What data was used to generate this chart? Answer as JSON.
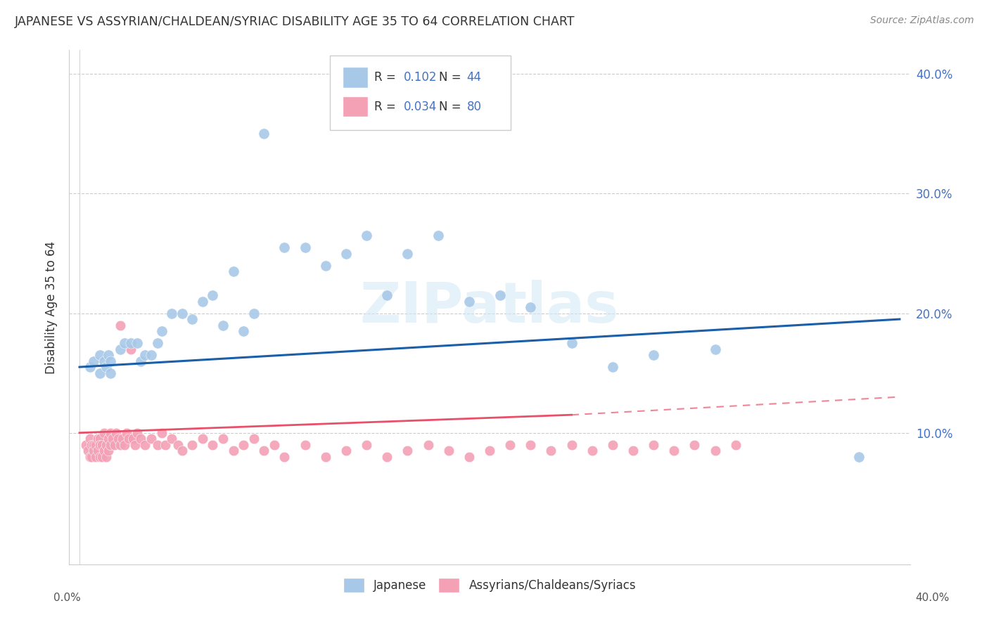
{
  "title": "JAPANESE VS ASSYRIAN/CHALDEAN/SYRIAC DISABILITY AGE 35 TO 64 CORRELATION CHART",
  "source": "Source: ZipAtlas.com",
  "ylabel": "Disability Age 35 to 64",
  "blue_color": "#a8c8e8",
  "pink_color": "#f4a0b5",
  "blue_line_color": "#1a5fa8",
  "pink_line_color": "#e8506a",
  "watermark": "ZIPatlas",
  "japanese_points_x": [
    0.005,
    0.007,
    0.01,
    0.01,
    0.012,
    0.013,
    0.014,
    0.015,
    0.015,
    0.02,
    0.022,
    0.025,
    0.028,
    0.03,
    0.032,
    0.035,
    0.038,
    0.04,
    0.045,
    0.05,
    0.055,
    0.06,
    0.065,
    0.07,
    0.075,
    0.08,
    0.085,
    0.09,
    0.1,
    0.11,
    0.12,
    0.13,
    0.14,
    0.15,
    0.16,
    0.175,
    0.19,
    0.205,
    0.22,
    0.24,
    0.26,
    0.28,
    0.31,
    0.38
  ],
  "japanese_points_y": [
    0.155,
    0.16,
    0.165,
    0.15,
    0.16,
    0.155,
    0.165,
    0.15,
    0.16,
    0.17,
    0.175,
    0.175,
    0.175,
    0.16,
    0.165,
    0.165,
    0.175,
    0.185,
    0.2,
    0.2,
    0.195,
    0.21,
    0.215,
    0.19,
    0.235,
    0.185,
    0.2,
    0.35,
    0.255,
    0.255,
    0.24,
    0.25,
    0.265,
    0.215,
    0.25,
    0.265,
    0.21,
    0.215,
    0.205,
    0.175,
    0.155,
    0.165,
    0.17,
    0.08
  ],
  "assyrian_points_x": [
    0.003,
    0.004,
    0.005,
    0.005,
    0.006,
    0.006,
    0.007,
    0.007,
    0.008,
    0.008,
    0.009,
    0.009,
    0.01,
    0.01,
    0.01,
    0.011,
    0.011,
    0.012,
    0.012,
    0.013,
    0.013,
    0.014,
    0.014,
    0.015,
    0.015,
    0.016,
    0.017,
    0.018,
    0.019,
    0.02,
    0.02,
    0.021,
    0.022,
    0.023,
    0.024,
    0.025,
    0.026,
    0.027,
    0.028,
    0.03,
    0.032,
    0.035,
    0.038,
    0.04,
    0.042,
    0.045,
    0.048,
    0.05,
    0.055,
    0.06,
    0.065,
    0.07,
    0.075,
    0.08,
    0.085,
    0.09,
    0.095,
    0.1,
    0.11,
    0.12,
    0.13,
    0.14,
    0.15,
    0.16,
    0.17,
    0.18,
    0.19,
    0.2,
    0.21,
    0.22,
    0.23,
    0.24,
    0.25,
    0.26,
    0.27,
    0.28,
    0.29,
    0.3,
    0.31,
    0.32
  ],
  "assyrian_points_y": [
    0.09,
    0.085,
    0.095,
    0.08,
    0.09,
    0.08,
    0.09,
    0.085,
    0.09,
    0.08,
    0.095,
    0.085,
    0.095,
    0.09,
    0.08,
    0.09,
    0.08,
    0.1,
    0.085,
    0.09,
    0.08,
    0.095,
    0.085,
    0.1,
    0.09,
    0.095,
    0.09,
    0.1,
    0.095,
    0.19,
    0.09,
    0.095,
    0.09,
    0.1,
    0.095,
    0.17,
    0.095,
    0.09,
    0.1,
    0.095,
    0.09,
    0.095,
    0.09,
    0.1,
    0.09,
    0.095,
    0.09,
    0.085,
    0.09,
    0.095,
    0.09,
    0.095,
    0.085,
    0.09,
    0.095,
    0.085,
    0.09,
    0.08,
    0.09,
    0.08,
    0.085,
    0.09,
    0.08,
    0.085,
    0.09,
    0.085,
    0.08,
    0.085,
    0.09,
    0.09,
    0.085,
    0.09,
    0.085,
    0.09,
    0.085,
    0.09,
    0.085,
    0.09,
    0.085,
    0.09
  ],
  "blue_trend": [
    0.0,
    0.4,
    0.155,
    0.195
  ],
  "pink_solid": [
    0.0,
    0.24,
    0.1,
    0.115
  ],
  "pink_dash": [
    0.24,
    0.4,
    0.115,
    0.13
  ],
  "ytick_vals": [
    0.1,
    0.2,
    0.3,
    0.4
  ],
  "ytick_labels": [
    "10.0%",
    "20.0%",
    "30.0%",
    "40.0%"
  ],
  "xlim": [
    -0.005,
    0.405
  ],
  "ylim": [
    -0.01,
    0.42
  ]
}
